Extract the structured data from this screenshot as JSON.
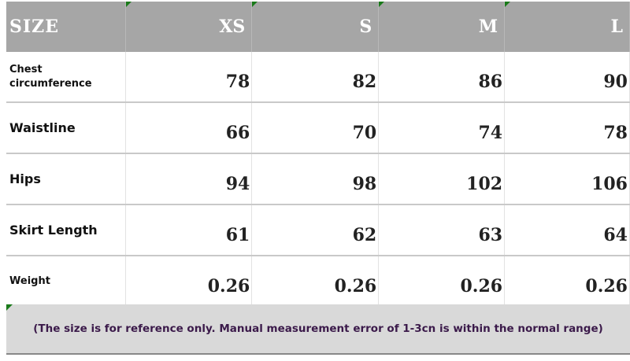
{
  "header": {
    "size_label": "SIZE",
    "sizes": [
      "XS",
      "S",
      "M",
      "L"
    ]
  },
  "rows": [
    {
      "label": "Chest circumference",
      "values": [
        "78",
        "82",
        "86",
        "90"
      ]
    },
    {
      "label": "Waistline",
      "values": [
        "66",
        "70",
        "74",
        "78"
      ]
    },
    {
      "label": "Hips",
      "values": [
        "94",
        "98",
        "102",
        "106"
      ]
    },
    {
      "label": "Skirt Length",
      "values": [
        "61",
        "62",
        "63",
        "64"
      ]
    },
    {
      "label": "Weight",
      "values": [
        "0.26",
        "0.26",
        "0.26",
        "0.26"
      ]
    }
  ],
  "note": "(The size is for reference only. Manual measurement error of 1-3cn is within the normal range)",
  "colors": {
    "header_bg": "#a6a6a6",
    "note_bg": "#d9d9d9",
    "corner_tick": "#1a7a1a"
  }
}
